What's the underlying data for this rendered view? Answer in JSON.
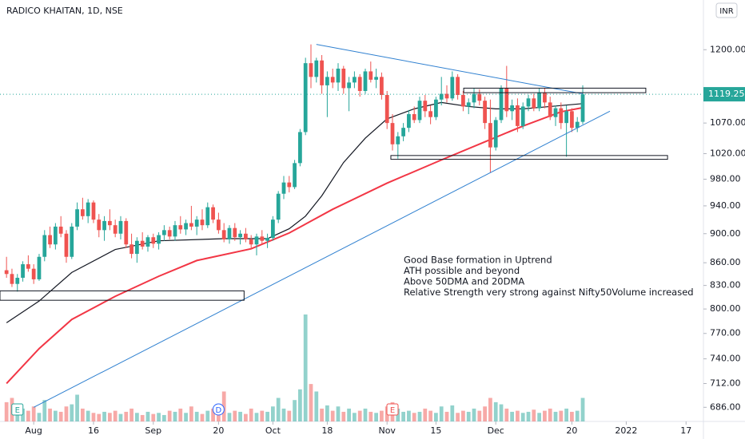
{
  "chart_data": {
    "type": "candlestick",
    "title": "RADICO KHAITAN, 1D, NSE",
    "currency": "INR",
    "up_color": "#26a69a",
    "down_color": "#ef5350",
    "log_scale": true,
    "xlim": [
      -1.2,
      128.2
    ],
    "ylim": [
      671,
      1297
    ],
    "yticks": [
      {
        "value": 686,
        "label": "686.00"
      },
      {
        "value": 712,
        "label": "712.00"
      },
      {
        "value": 740,
        "label": "740.00"
      },
      {
        "value": 770,
        "label": "770.00"
      },
      {
        "value": 800,
        "label": "800.00"
      },
      {
        "value": 830,
        "label": "830.00"
      },
      {
        "value": 860,
        "label": "860.00"
      },
      {
        "value": 900,
        "label": "900.00"
      },
      {
        "value": 940,
        "label": "940.00"
      },
      {
        "value": 980,
        "label": "980.00"
      },
      {
        "value": 1020,
        "label": "1020.00"
      },
      {
        "value": 1070,
        "label": "1070.00"
      },
      {
        "value": 1200,
        "label": "1200.00"
      }
    ],
    "xticks": [
      {
        "value": 5,
        "label": "Aug"
      },
      {
        "value": 16,
        "label": "16"
      },
      {
        "value": 27,
        "label": "Sep"
      },
      {
        "value": 39,
        "label": "20"
      },
      {
        "value": 49,
        "label": "Oct"
      },
      {
        "value": 59,
        "label": "18"
      },
      {
        "value": 70,
        "label": "Nov"
      },
      {
        "value": 79,
        "label": "15"
      },
      {
        "value": 90,
        "label": "Dec"
      },
      {
        "value": 104,
        "label": "20"
      },
      {
        "value": 114,
        "label": "2022"
      },
      {
        "value": 125,
        "label": "17"
      }
    ],
    "ohlc": [
      [
        850,
        868,
        840,
        845
      ],
      [
        845,
        852,
        828,
        832
      ],
      [
        832,
        845,
        822,
        840
      ],
      [
        840,
        862,
        835,
        858
      ],
      [
        858,
        870,
        848,
        852
      ],
      [
        852,
        858,
        832,
        838
      ],
      [
        838,
        872,
        836,
        868
      ],
      [
        868,
        905,
        862,
        898
      ],
      [
        898,
        910,
        880,
        885
      ],
      [
        885,
        915,
        878,
        910
      ],
      [
        910,
        925,
        895,
        900
      ],
      [
        900,
        905,
        860,
        868
      ],
      [
        868,
        915,
        865,
        910
      ],
      [
        910,
        945,
        905,
        935
      ],
      [
        935,
        952,
        920,
        925
      ],
      [
        925,
        950,
        915,
        945
      ],
      [
        945,
        948,
        915,
        920
      ],
      [
        920,
        928,
        895,
        905
      ],
      [
        905,
        925,
        890,
        918
      ],
      [
        918,
        935,
        905,
        912
      ],
      [
        912,
        920,
        895,
        900
      ],
      [
        900,
        925,
        892,
        918
      ],
      [
        918,
        922,
        880,
        885
      ],
      [
        885,
        900,
        866,
        872
      ],
      [
        872,
        895,
        860,
        890
      ],
      [
        890,
        902,
        878,
        882
      ],
      [
        882,
        898,
        875,
        895
      ],
      [
        895,
        900,
        880,
        886
      ],
      [
        886,
        902,
        878,
        898
      ],
      [
        898,
        912,
        890,
        905
      ],
      [
        905,
        910,
        892,
        896
      ],
      [
        896,
        918,
        890,
        912
      ],
      [
        912,
        925,
        900,
        906
      ],
      [
        906,
        920,
        898,
        915
      ],
      [
        915,
        940,
        905,
        910
      ],
      [
        910,
        925,
        898,
        920
      ],
      [
        920,
        935,
        905,
        912
      ],
      [
        912,
        945,
        908,
        938
      ],
      [
        938,
        942,
        915,
        920
      ],
      [
        920,
        930,
        900,
        905
      ],
      [
        905,
        915,
        888,
        892
      ],
      [
        892,
        912,
        886,
        908
      ],
      [
        908,
        915,
        890,
        895
      ],
      [
        895,
        905,
        885,
        900
      ],
      [
        900,
        908,
        888,
        892
      ],
      [
        892,
        898,
        878,
        885
      ],
      [
        885,
        900,
        870,
        896
      ],
      [
        896,
        905,
        885,
        890
      ],
      [
        890,
        900,
        880,
        894
      ],
      [
        894,
        925,
        890,
        920
      ],
      [
        920,
        962,
        915,
        958
      ],
      [
        958,
        985,
        950,
        975
      ],
      [
        975,
        985,
        960,
        968
      ],
      [
        968,
        1010,
        965,
        1005
      ],
      [
        1005,
        1060,
        1000,
        1055
      ],
      [
        1055,
        1185,
        1050,
        1175
      ],
      [
        1175,
        1210,
        1130,
        1150
      ],
      [
        1150,
        1185,
        1140,
        1180
      ],
      [
        1180,
        1190,
        1120,
        1135
      ],
      [
        1135,
        1160,
        1080,
        1150
      ],
      [
        1150,
        1165,
        1130,
        1140
      ],
      [
        1140,
        1175,
        1125,
        1165
      ],
      [
        1165,
        1170,
        1120,
        1130
      ],
      [
        1130,
        1150,
        1090,
        1140
      ],
      [
        1140,
        1160,
        1130,
        1150
      ],
      [
        1150,
        1155,
        1115,
        1125
      ],
      [
        1125,
        1165,
        1120,
        1160
      ],
      [
        1160,
        1178,
        1140,
        1145
      ],
      [
        1145,
        1165,
        1130,
        1150
      ],
      [
        1150,
        1158,
        1110,
        1118
      ],
      [
        1118,
        1125,
        1060,
        1070
      ],
      [
        1070,
        1085,
        1025,
        1035
      ],
      [
        1035,
        1055,
        1012,
        1048
      ],
      [
        1048,
        1070,
        1040,
        1062
      ],
      [
        1062,
        1092,
        1055,
        1085
      ],
      [
        1085,
        1098,
        1070,
        1075
      ],
      [
        1075,
        1115,
        1070,
        1108
      ],
      [
        1108,
        1118,
        1080,
        1090
      ],
      [
        1090,
        1100,
        1068,
        1080
      ],
      [
        1080,
        1115,
        1075,
        1110
      ],
      [
        1110,
        1150,
        1100,
        1120
      ],
      [
        1120,
        1135,
        1105,
        1112
      ],
      [
        1112,
        1160,
        1108,
        1150
      ],
      [
        1150,
        1155,
        1110,
        1118
      ],
      [
        1118,
        1125,
        1090,
        1098
      ],
      [
        1098,
        1112,
        1085,
        1105
      ],
      [
        1105,
        1130,
        1095,
        1120
      ],
      [
        1120,
        1128,
        1100,
        1108
      ],
      [
        1108,
        1115,
        1060,
        1070
      ],
      [
        1070,
        1110,
        990,
        1030
      ],
      [
        1030,
        1080,
        1025,
        1075
      ],
      [
        1075,
        1135,
        1070,
        1130
      ],
      [
        1130,
        1170,
        1080,
        1090
      ],
      [
        1090,
        1110,
        1075,
        1100
      ],
      [
        1100,
        1112,
        1055,
        1065
      ],
      [
        1065,
        1105,
        1060,
        1098
      ],
      [
        1098,
        1118,
        1090,
        1112
      ],
      [
        1112,
        1120,
        1090,
        1095
      ],
      [
        1095,
        1130,
        1090,
        1122
      ],
      [
        1122,
        1130,
        1095,
        1105
      ],
      [
        1105,
        1115,
        1075,
        1080
      ],
      [
        1080,
        1100,
        1065,
        1095
      ],
      [
        1095,
        1105,
        1060,
        1070
      ],
      [
        1070,
        1100,
        1015,
        1090
      ],
      [
        1090,
        1095,
        1055,
        1062
      ],
      [
        1062,
        1080,
        1055,
        1072
      ],
      [
        1072,
        1135,
        1068,
        1119.25
      ]
    ],
    "volume": [
      18,
      22,
      15,
      12,
      10,
      14,
      8,
      20,
      12,
      10,
      9,
      14,
      16,
      25,
      12,
      10,
      8,
      7,
      9,
      8,
      10,
      7,
      9,
      12,
      8,
      6,
      9,
      7,
      8,
      6,
      10,
      9,
      12,
      8,
      14,
      9,
      7,
      10,
      12,
      9,
      28,
      8,
      10,
      9,
      7,
      12,
      8,
      10,
      9,
      14,
      22,
      12,
      10,
      20,
      30,
      100,
      35,
      28,
      12,
      15,
      10,
      14,
      9,
      12,
      8,
      10,
      12,
      9,
      8,
      10,
      14,
      18,
      12,
      9,
      10,
      8,
      9,
      12,
      10,
      8,
      14,
      9,
      15,
      8,
      10,
      9,
      12,
      10,
      14,
      22,
      18,
      16,
      12,
      9,
      10,
      8,
      9,
      11,
      8,
      10,
      12,
      9,
      10,
      12,
      9,
      10,
      22
    ],
    "volume_lim": [
      0,
      100
    ],
    "lines": [
      {
        "color": "#131722",
        "x": [
          0,
          6,
          12,
          20,
          28,
          40,
          48,
          52,
          55,
          58,
          62,
          66,
          70,
          75,
          80,
          85,
          90,
          95,
          100,
          106
        ],
        "values": [
          783,
          810,
          847,
          878,
          890,
          893,
          893,
          907,
          925,
          955,
          1006,
          1045,
          1077,
          1094,
          1105,
          1098,
          1094,
          1094,
          1098,
          1103
        ]
      },
      {
        "color": "#f23645",
        "x": [
          0,
          6,
          12,
          20,
          28,
          35,
          45,
          52,
          60,
          70,
          80,
          88,
          95,
          102,
          106
        ],
        "values": [
          712,
          752,
          787,
          816,
          842,
          863,
          879,
          901,
          935,
          974,
          1010,
          1039,
          1065,
          1089,
          1096
        ]
      }
    ],
    "trendlines": [
      {
        "x": [
          57,
          106
        ],
        "y": [
          1210,
          1120
        ]
      },
      {
        "x": [
          5,
          111
        ],
        "y": [
          686,
          1090
        ]
      }
    ],
    "boxes": [
      {
        "x": [
          84.1,
          117.6
        ],
        "y": [
          1122,
          1130
        ]
      },
      {
        "x": [
          70.7,
          121.6
        ],
        "y": [
          1011,
          1017
        ]
      },
      {
        "x": [
          -1.2,
          43.7
        ],
        "y": [
          811,
          823
        ]
      }
    ],
    "events": [
      {
        "label": "E",
        "x": 2
      },
      {
        "label": "D",
        "x": 39
      },
      {
        "label": "E",
        "x": 71
      }
    ],
    "annotation_lines": [
      "Good Base formation in Uptrend",
      "ATH possible and beyond",
      "Above 50DMA and 20DMA",
      "Relative Strength very strong against Nifty50Volume increased"
    ]
  }
}
